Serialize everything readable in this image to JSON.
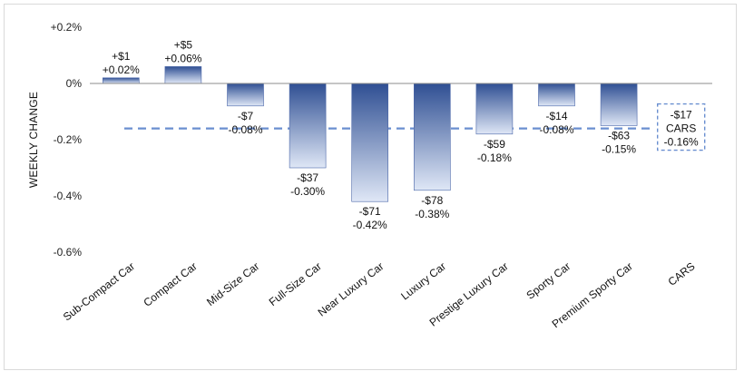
{
  "chart_data": {
    "type": "bar",
    "ylabel": "WEEKLY CHANGE",
    "ylim": [
      -0.6,
      0.2
    ],
    "yticks": [
      0.2,
      0,
      -0.2,
      -0.4,
      -0.6
    ],
    "ytick_labels": [
      "+0.2%",
      "0%",
      "-0.2%",
      "-0.4%",
      "-0.6%"
    ],
    "grid": false,
    "categories": [
      "Sub-Compact Car",
      "Compact Car",
      "Mid-Size Car",
      "Full-Size Car",
      "Near Luxury Car",
      "Luxury Car",
      "Prestige Luxury Car",
      "Sporty Car",
      "Premium Sporty Car",
      "CARS"
    ],
    "values": [
      0.02,
      0.06,
      -0.08,
      -0.3,
      -0.42,
      -0.38,
      -0.18,
      -0.08,
      -0.15,
      null
    ],
    "dollar_labels": [
      "+$1",
      "+$5",
      "-$7",
      "-$37",
      "-$71",
      "-$78",
      "-$59",
      "-$14",
      "-$63",
      "-$17"
    ],
    "percent_labels": [
      "+0.02%",
      "+0.06%",
      "-0.08%",
      "-0.30%",
      "-0.42%",
      "-0.38%",
      "-0.18%",
      "-0.08%",
      "-0.15%",
      "-0.16%"
    ],
    "reference_line": {
      "name": "CARS",
      "value": -0.16,
      "dollar_label": "-$17",
      "percent_label": "-0.16%"
    },
    "colors": {
      "bar_dark": "#2f4f93",
      "bar_light": "#dfe7f6",
      "reference": "#6a8fd0",
      "axis": "#8c8c8c"
    }
  }
}
